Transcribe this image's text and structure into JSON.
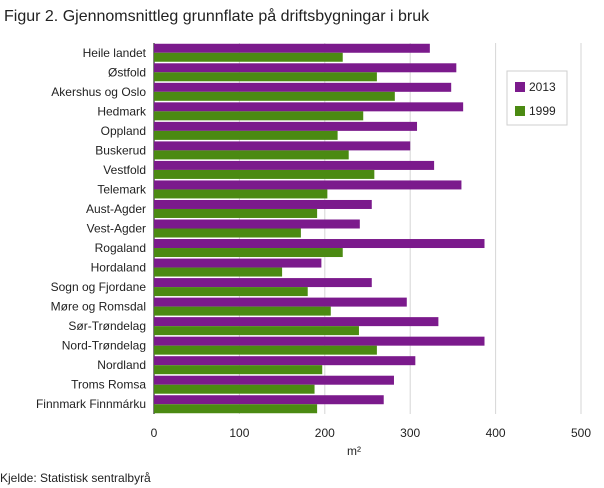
{
  "title": "Figur 2. Gjennomsnittleg grunnflate på driftsbygningar i bruk",
  "source": "Kjelde: Statistisk sentralbyrå",
  "chart_data": {
    "type": "bar",
    "orientation": "horizontal",
    "categories": [
      "Heile landet",
      "Østfold",
      "Akershus og Oslo",
      "Hedmark",
      "Oppland",
      "Buskerud",
      "Vestfold",
      "Telemark",
      "Aust-Agder",
      "Vest-Agder",
      "Rogaland",
      "Hordaland",
      "Sogn og Fjordane",
      "Møre og Romsdal",
      "Sør-Trøndelag",
      "Nord-Trøndelag",
      "Nordland",
      "Troms Romsa",
      "Finnmark Finnmárku"
    ],
    "series": [
      {
        "name": "2013",
        "color": "#7b1a8c",
        "values": [
          323,
          354,
          348,
          362,
          308,
          300,
          328,
          360,
          255,
          241,
          387,
          196,
          255,
          296,
          333,
          387,
          306,
          281,
          269
        ]
      },
      {
        "name": "1999",
        "color": "#4b8a12",
        "values": [
          221,
          261,
          282,
          245,
          215,
          228,
          258,
          203,
          191,
          172,
          221,
          150,
          180,
          207,
          240,
          261,
          197,
          188,
          191
        ]
      }
    ],
    "xlabel": "m²",
    "xlim": [
      0,
      500
    ],
    "xticks": [
      "0",
      "100",
      "200",
      "300",
      "400",
      "500"
    ],
    "legend_position": "top-right",
    "grid": true
  }
}
